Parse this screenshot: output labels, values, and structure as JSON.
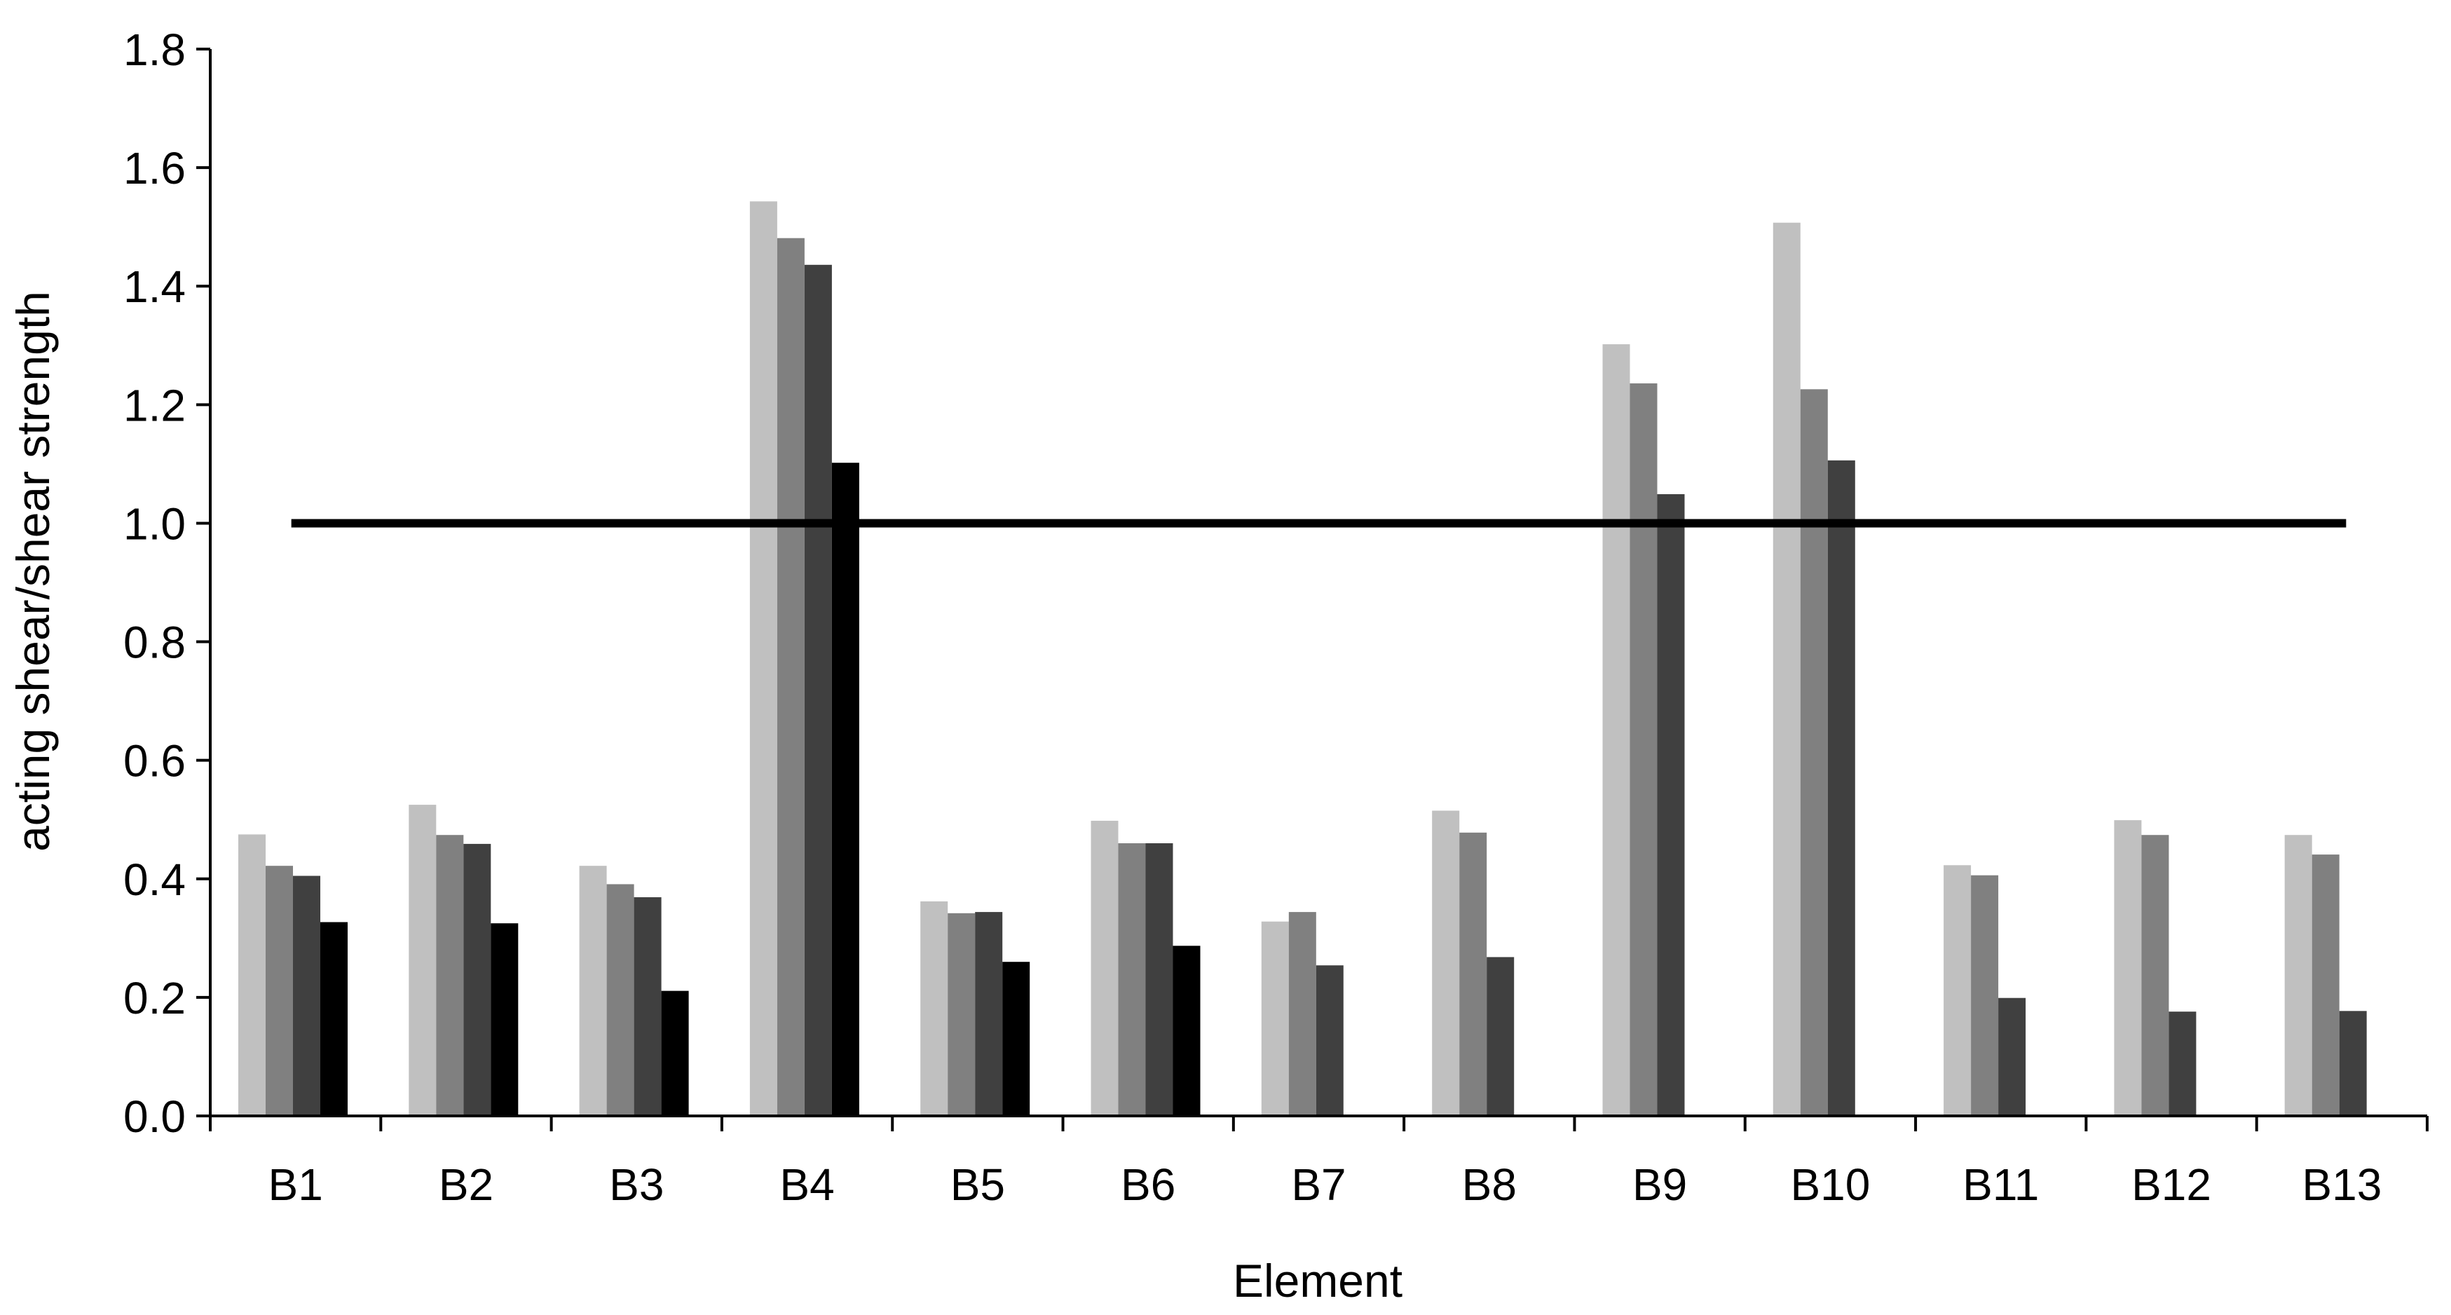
{
  "chart_data": {
    "type": "bar",
    "title": "",
    "xlabel": "Element",
    "ylabel": "acting shear/shear strength",
    "ylim": [
      0,
      1.8
    ],
    "yticks": [
      "0.0",
      "0.2",
      "0.4",
      "0.6",
      "0.8",
      "1.0",
      "1.2",
      "1.4",
      "1.6",
      "1.8"
    ],
    "categories": [
      "B1",
      "B2",
      "B3",
      "B4",
      "B5",
      "B6",
      "B7",
      "B8",
      "B9",
      "B10",
      "B11",
      "B12",
      "B13"
    ],
    "series": [
      {
        "color": "#c0c0c0",
        "values": [
          0.475,
          0.525,
          0.422,
          1.543,
          0.362,
          0.498,
          0.328,
          0.515,
          1.302,
          1.507,
          0.423,
          0.499,
          0.474
        ]
      },
      {
        "color": "#808080",
        "values": [
          0.422,
          0.474,
          0.391,
          1.481,
          0.342,
          0.46,
          0.344,
          0.478,
          1.236,
          1.226,
          0.406,
          0.474,
          0.441
        ]
      },
      {
        "color": "#404040",
        "values": [
          0.405,
          0.459,
          0.369,
          1.436,
          0.344,
          0.46,
          0.254,
          0.268,
          1.049,
          1.106,
          0.199,
          0.176,
          0.177
        ]
      },
      {
        "color": "#000000",
        "values": [
          0.327,
          0.325,
          0.211,
          1.102,
          0.26,
          0.287,
          null,
          null,
          null,
          null,
          null,
          null,
          null
        ]
      }
    ],
    "reference_line": {
      "y": 1.0,
      "color": "#000000"
    },
    "grid": false,
    "legend": "none"
  }
}
